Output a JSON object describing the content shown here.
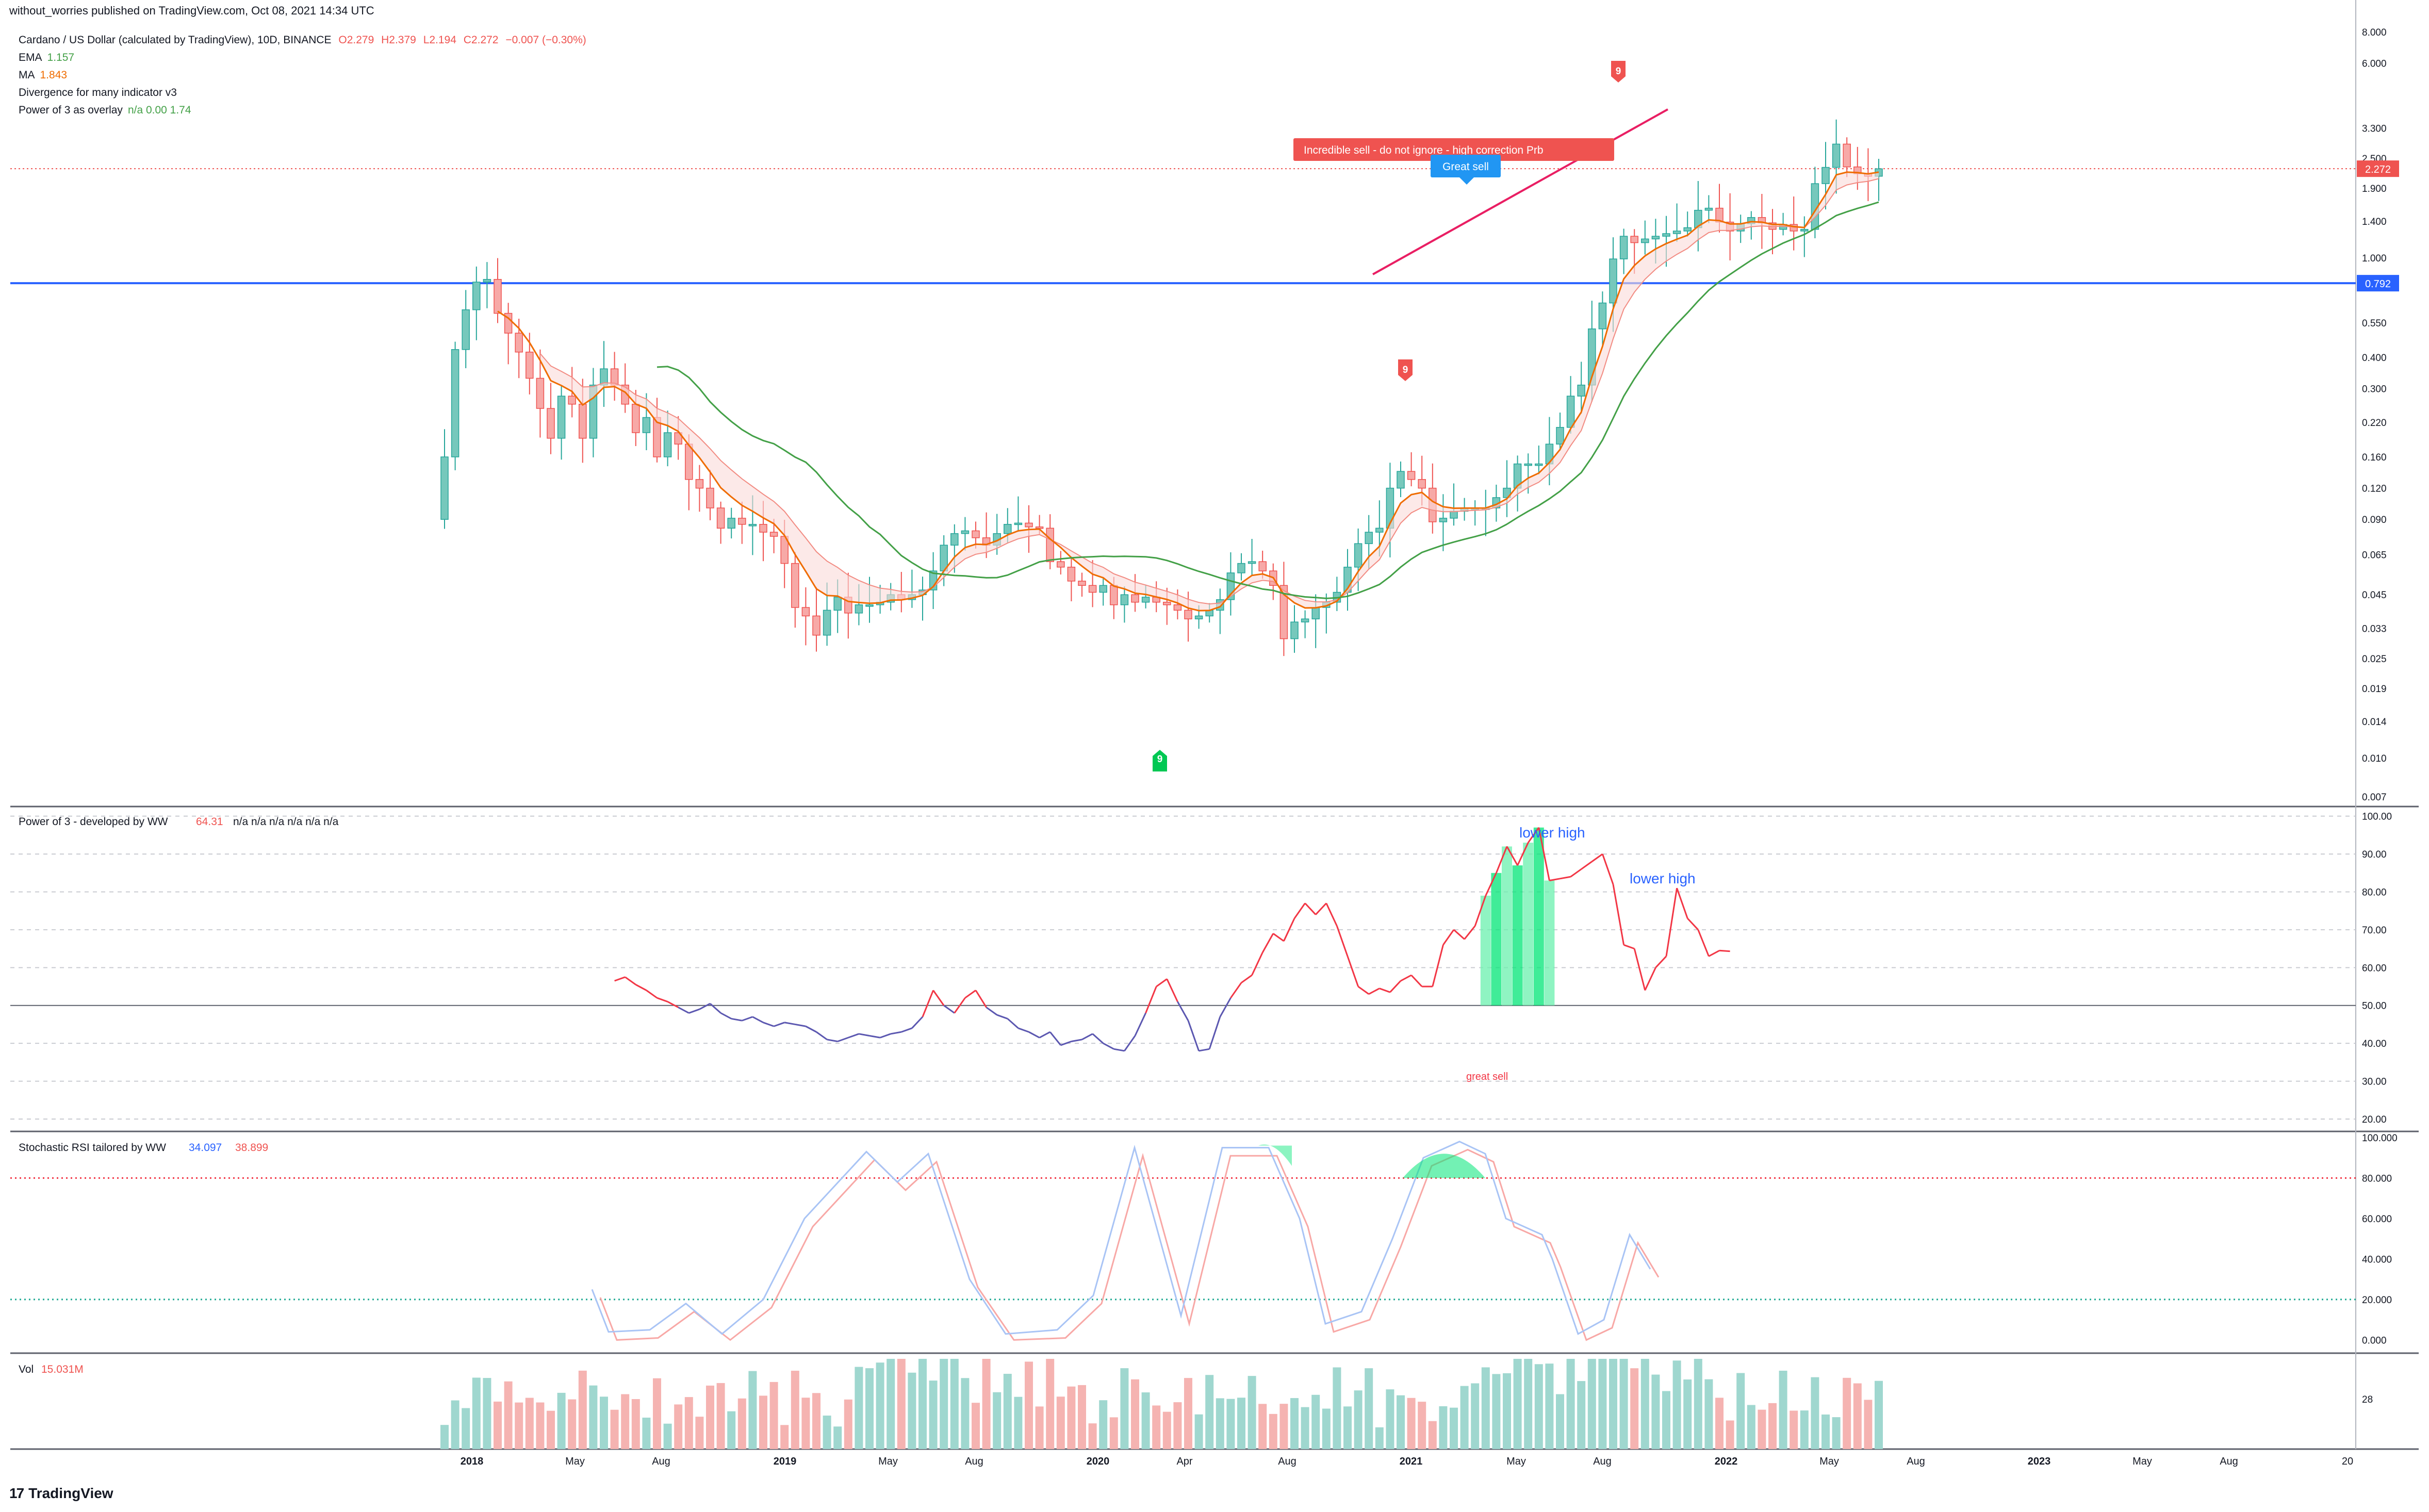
{
  "header": {
    "published": "without_worries published on TradingView.com, Oct 08, 2021 14:34 UTC",
    "symbol": "Cardano / US Dollar (calculated by TradingView), 10D, BINANCE",
    "ohlc": {
      "o": "O2.279",
      "h": "H2.379",
      "l": "L2.194",
      "c": "C2.272",
      "chg": "−0.007 (−0.30%)"
    },
    "indicators": [
      {
        "name": "EMA",
        "value": "1.157",
        "color": "#43a047"
      },
      {
        "name": "MA",
        "value": "1.843",
        "color": "#ef6c00"
      },
      {
        "name": "Divergence for many indicator v3",
        "value": "",
        "color": "#131722"
      },
      {
        "name": "Power of 3 as overlay",
        "value": "n/a  0.00  1.74",
        "color": "#43a047"
      }
    ]
  },
  "footer": {
    "brand": "TradingView",
    "brand_mark": "17"
  },
  "colors": {
    "up": "#26a69a",
    "down": "#ef5350",
    "upFill": "#76c8bc",
    "downFill": "#f7a9a7",
    "ema": "#43a047",
    "ma": "#ef6c00",
    "hline": "#2962ff",
    "trend": "#e91e63",
    "grid": "#ffffff",
    "axis": "#787b86"
  },
  "chart_data": [
    {
      "type": "candlestick",
      "name": "ADAUSD 10D price (log scale)",
      "x_ticks": [
        "2018",
        "May",
        "Aug",
        "2019",
        "May",
        "Aug",
        "2020",
        "Apr",
        "Aug",
        "2021",
        "May",
        "Aug",
        "2022",
        "May",
        "Aug",
        "2023",
        "May",
        "Aug",
        "20"
      ],
      "y_scale": "log",
      "y_ticks": [
        "8.000",
        "6.000",
        "3.300",
        "2.500",
        "1.900",
        "1.400",
        "1.000",
        "0.550",
        "0.400",
        "0.300",
        "0.220",
        "0.160",
        "0.120",
        "0.090",
        "0.065",
        "0.045",
        "0.033",
        "0.025",
        "0.019",
        "0.014",
        "0.010",
        "0.007"
      ],
      "last_price": "2.272",
      "horizontal_line": {
        "value": 0.792,
        "label": "0.792"
      },
      "closes": [
        0.16,
        0.43,
        0.62,
        0.8,
        0.82,
        0.6,
        0.5,
        0.42,
        0.33,
        0.25,
        0.19,
        0.28,
        0.26,
        0.19,
        0.31,
        0.36,
        0.31,
        0.26,
        0.2,
        0.23,
        0.16,
        0.2,
        0.18,
        0.13,
        0.12,
        0.1,
        0.083,
        0.091,
        0.086,
        0.086,
        0.08,
        0.077,
        0.06,
        0.04,
        0.037,
        0.031,
        0.039,
        0.044,
        0.038,
        0.041,
        0.041,
        0.042,
        0.045,
        0.043,
        0.045,
        0.047,
        0.056,
        0.071,
        0.079,
        0.081,
        0.076,
        0.071,
        0.079,
        0.086,
        0.087,
        0.084,
        0.083,
        0.061,
        0.058,
        0.051,
        0.049,
        0.046,
        0.049,
        0.041,
        0.045,
        0.042,
        0.044,
        0.042,
        0.041,
        0.039,
        0.036,
        0.037,
        0.039,
        0.043,
        0.055,
        0.06,
        0.061,
        0.056,
        0.049,
        0.03,
        0.035,
        0.036,
        0.04,
        0.042,
        0.046,
        0.058,
        0.072,
        0.08,
        0.083,
        0.12,
        0.14,
        0.13,
        0.12,
        0.088,
        0.091,
        0.097,
        0.1,
        0.1,
        0.1,
        0.11,
        0.12,
        0.15,
        0.15,
        0.15,
        0.18,
        0.21,
        0.28,
        0.31,
        0.52,
        0.66,
        0.99,
        1.22,
        1.15,
        1.19,
        1.22,
        1.25,
        1.28,
        1.32,
        1.55,
        1.58,
        1.39,
        1.28,
        1.37,
        1.45,
        1.38,
        1.3,
        1.36,
        1.28,
        1.3,
        1.98,
        2.3,
        2.85,
        2.31,
        2.17,
        2.12,
        2.27
      ],
      "ema_last": "1.157",
      "ma_last": "1.843",
      "annotations": [
        "9",
        "9",
        "9",
        "Great sell",
        "Incredible sell - do not ignore - high correction Prb"
      ]
    },
    {
      "type": "line",
      "name": "Power of 3 - developed by WW",
      "legend_value": "64.31",
      "legend_na": "n/a  n/a  n/a  n/a  n/a  n/a",
      "y_ticks": [
        "100.00",
        "90.00",
        "80.00",
        "70.00",
        "60.00",
        "50.00",
        "40.00",
        "30.00",
        "20.00"
      ],
      "ylim": [
        17,
        102
      ],
      "baseline": 50,
      "x_start_index": 16,
      "values": [
        56.5,
        57.5,
        55.5,
        54,
        52,
        51,
        49.5,
        48,
        49,
        50.5,
        48,
        46.5,
        46,
        47,
        45.5,
        44.5,
        45.5,
        45,
        44.5,
        43,
        41,
        40.5,
        41.5,
        42.5,
        42,
        41.5,
        42.5,
        43,
        44,
        47,
        54,
        50,
        48,
        52,
        54,
        49.5,
        47.5,
        46.5,
        44,
        43,
        41.5,
        43,
        39.5,
        40.5,
        41,
        42.5,
        40,
        38.5,
        38,
        42,
        48,
        55,
        57,
        51,
        46,
        38,
        38.5,
        47,
        52,
        56,
        58,
        64,
        69,
        67,
        73,
        77,
        74,
        77,
        71,
        63,
        55,
        53,
        54.5,
        53.5,
        56.5,
        58,
        55,
        55,
        66,
        70,
        67.5,
        71,
        79,
        85,
        92,
        87,
        93,
        97,
        83,
        83.5,
        84,
        86,
        88,
        90,
        82,
        66,
        65,
        54,
        60,
        63,
        81,
        73,
        70,
        63,
        64.5,
        64.31
      ],
      "highlight_range": [
        82,
        88
      ],
      "annotations": [
        "lower high",
        "lower high",
        "great sell"
      ]
    },
    {
      "type": "line",
      "name": "Stochastic RSI tailored by WW",
      "series": [
        {
          "name": "K",
          "value": "34.097",
          "color": "#2962ff"
        },
        {
          "name": "D",
          "value": "38.899",
          "color": "#ef5350"
        }
      ],
      "y_ticks": [
        "100.000",
        "80.000",
        "60.000",
        "40.000",
        "20.000",
        "0.000"
      ],
      "ylim": [
        -6,
        102
      ],
      "levels": [
        80,
        20
      ]
    },
    {
      "type": "bar",
      "name": "Vol",
      "legend_value": "15.031M",
      "y_ticks": [
        "28"
      ]
    }
  ]
}
